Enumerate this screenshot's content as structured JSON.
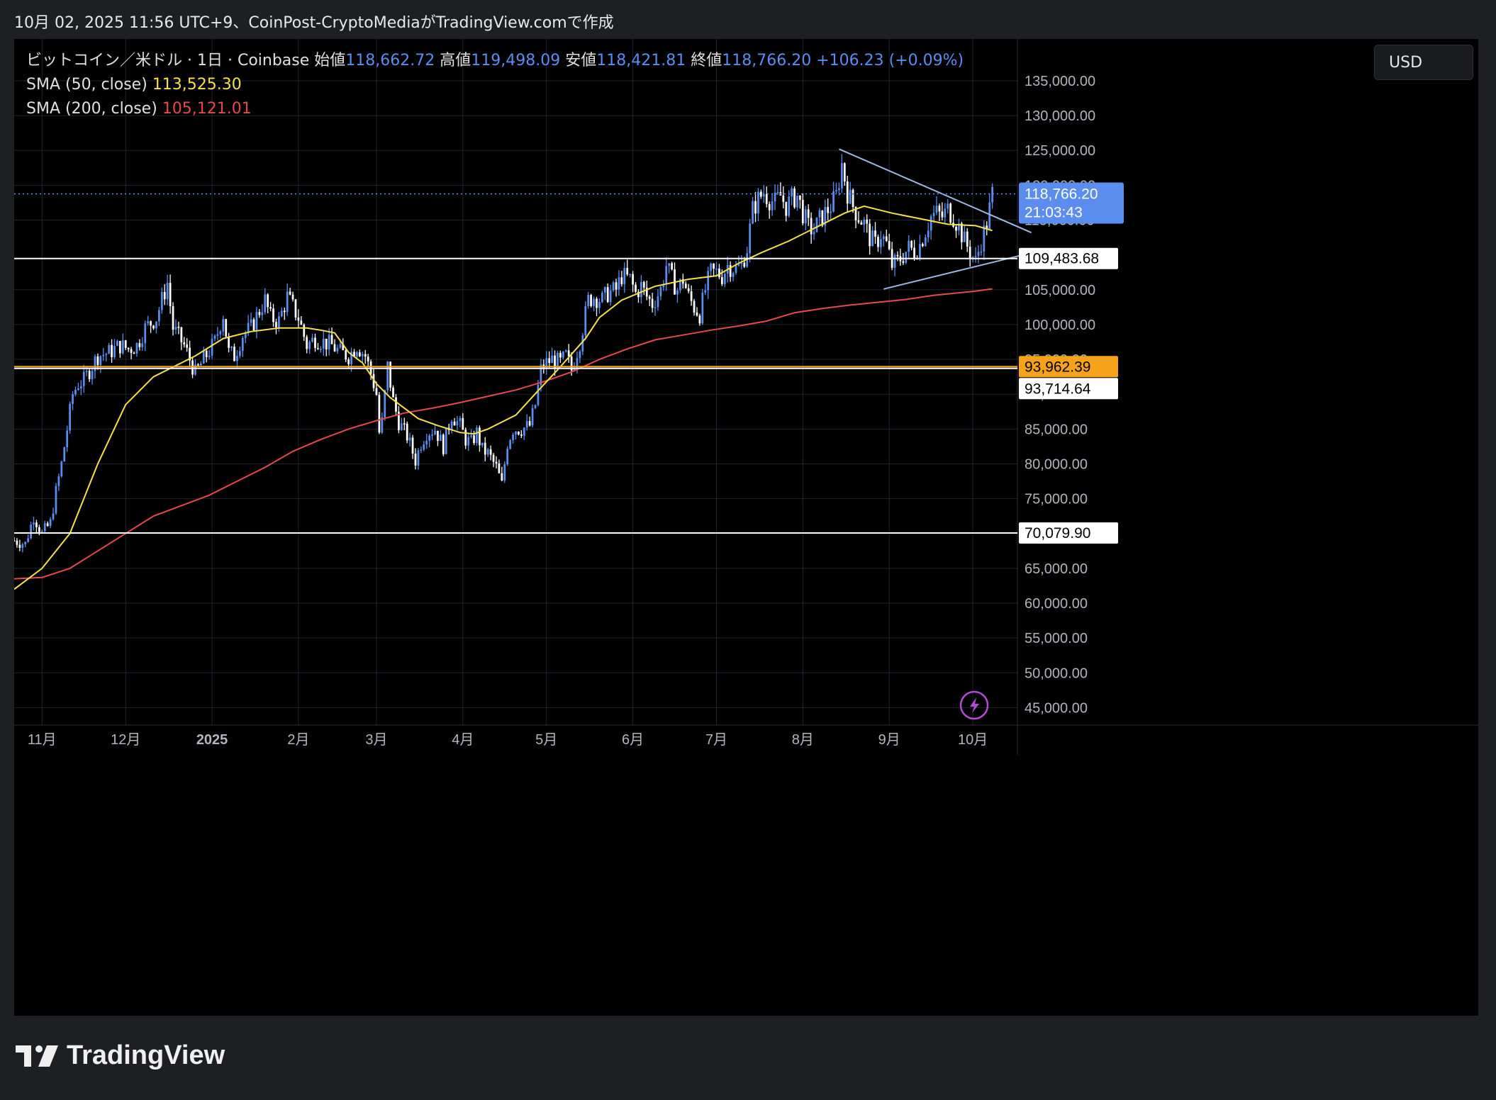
{
  "caption": "10月 02, 2025 11:56 UTC+9、CoinPost-CryptoMediaがTradingView.comで作成",
  "legend": {
    "symbol": "ビットコイン／米ドル · 1日 · Coinbase",
    "open_label": "始値",
    "open": "118,662.72",
    "high_label": "高値",
    "high": "119,498.09",
    "low_label": "安値",
    "low": "118,421.81",
    "close_label": "終値",
    "close": "118,766.20",
    "change": "+106.23 (+0.09%)",
    "sma50_label": "SMA (50, close)",
    "sma50_value": "113,525.30",
    "sma200_label": "SMA (200, close)",
    "sma200_value": "105,121.01"
  },
  "currency": "USD",
  "brand": "TradingView",
  "colors": {
    "background": "#000000",
    "up": "#5b8def",
    "down": "#ffffff",
    "sma50": "#f5e14a",
    "sma200": "#e5484d",
    "trendline": "#9db8e6",
    "level_orange": "#f7a21b",
    "grid": "#3a3f55"
  },
  "chart_data": {
    "type": "candlestick",
    "title": "ビットコイン／米ドル · 1日 · Coinbase",
    "ylim": [
      42500,
      141000
    ],
    "y_ticks": [
      "135,000.00",
      "130,000.00",
      "125,000.00",
      "120,000.00",
      "115,000.00",
      "105,000.00",
      "100,000.00",
      "95,000.00",
      "90,000.00",
      "85,000.00",
      "80,000.00",
      "75,000.00",
      "65,000.00",
      "60,000.00",
      "55,000.00",
      "50,000.00",
      "45,000.00"
    ],
    "y_tick_values": [
      135000,
      130000,
      125000,
      120000,
      115000,
      105000,
      100000,
      95000,
      90000,
      85000,
      80000,
      75000,
      65000,
      60000,
      55000,
      50000,
      45000
    ],
    "x_months": [
      {
        "label": "11月",
        "day": 0
      },
      {
        "label": "12月",
        "day": 30
      },
      {
        "label": "2025",
        "day": 61
      },
      {
        "label": "2月",
        "day": 92
      },
      {
        "label": "3月",
        "day": 120
      },
      {
        "label": "4月",
        "day": 151
      },
      {
        "label": "5月",
        "day": 181
      },
      {
        "label": "6月",
        "day": 212
      },
      {
        "label": "7月",
        "day": 242
      },
      {
        "label": "8月",
        "day": 273
      },
      {
        "label": "9月",
        "day": 304
      },
      {
        "label": "10月",
        "day": 334
      }
    ],
    "x_range_days": [
      -10,
      350
    ],
    "price_path": [
      [
        -10,
        69000
      ],
      [
        -6,
        68500
      ],
      [
        -3,
        72500
      ],
      [
        0,
        70000
      ],
      [
        3,
        71500
      ],
      [
        5,
        76000
      ],
      [
        7,
        80000
      ],
      [
        9,
        85000
      ],
      [
        11,
        90000
      ],
      [
        13,
        91500
      ],
      [
        15,
        92000
      ],
      [
        20,
        95500
      ],
      [
        24,
        96000
      ],
      [
        28,
        97000
      ],
      [
        31,
        96500
      ],
      [
        34,
        97000
      ],
      [
        37,
        99500
      ],
      [
        41,
        101000
      ],
      [
        45,
        106000
      ],
      [
        47,
        99500
      ],
      [
        51,
        97000
      ],
      [
        55,
        93000
      ],
      [
        58,
        95000
      ],
      [
        62,
        97500
      ],
      [
        65,
        101500
      ],
      [
        67,
        96000
      ],
      [
        69,
        95500
      ],
      [
        72,
        98500
      ],
      [
        75,
        99500
      ],
      [
        78,
        102000
      ],
      [
        80,
        103500
      ],
      [
        82,
        101000
      ],
      [
        85,
        100500
      ],
      [
        88,
        104000
      ],
      [
        90,
        102500
      ],
      [
        92,
        101000
      ],
      [
        95,
        97000
      ],
      [
        98,
        98000
      ],
      [
        101,
        97500
      ],
      [
        104,
        97000
      ],
      [
        107,
        96000
      ],
      [
        110,
        95500
      ],
      [
        113,
        97000
      ],
      [
        116,
        95500
      ],
      [
        118,
        93000
      ],
      [
        120,
        90000
      ],
      [
        121,
        84500
      ],
      [
        122,
        86000
      ],
      [
        124,
        94000
      ],
      [
        126,
        89000
      ],
      [
        128,
        86000
      ],
      [
        131,
        84000
      ],
      [
        134,
        80500
      ],
      [
        136,
        83000
      ],
      [
        138,
        84500
      ],
      [
        141,
        85000
      ],
      [
        144,
        82500
      ],
      [
        147,
        87000
      ],
      [
        150,
        85500
      ],
      [
        152,
        83500
      ],
      [
        154,
        83000
      ],
      [
        156,
        84500
      ],
      [
        158,
        82000
      ],
      [
        160,
        81500
      ],
      [
        163,
        79500
      ],
      [
        165,
        77000
      ],
      [
        167,
        83000
      ],
      [
        169,
        85000
      ],
      [
        172,
        85000
      ],
      [
        175,
        85500
      ],
      [
        177,
        88500
      ],
      [
        179,
        93500
      ],
      [
        181,
        94500
      ],
      [
        183,
        95000
      ],
      [
        186,
        94500
      ],
      [
        188,
        95500
      ],
      [
        190,
        93500
      ],
      [
        193,
        97500
      ],
      [
        196,
        103500
      ],
      [
        198,
        104000
      ],
      [
        201,
        103500
      ],
      [
        203,
        104500
      ],
      [
        206,
        105000
      ],
      [
        208,
        107000
      ],
      [
        211,
        106500
      ],
      [
        213,
        104500
      ],
      [
        215,
        105500
      ],
      [
        217,
        104000
      ],
      [
        219,
        103000
      ],
      [
        222,
        105000
      ],
      [
        224,
        108500
      ],
      [
        226,
        106500
      ],
      [
        228,
        105000
      ],
      [
        230,
        106500
      ],
      [
        232,
        104000
      ],
      [
        234,
        102500
      ],
      [
        236,
        101500
      ],
      [
        238,
        105000
      ],
      [
        240,
        107500
      ],
      [
        242,
        107500
      ],
      [
        244,
        107000
      ],
      [
        246,
        108500
      ],
      [
        249,
        108000
      ],
      [
        251,
        108500
      ],
      [
        253,
        111000
      ],
      [
        255,
        116500
      ],
      [
        257,
        118000
      ],
      [
        259,
        119000
      ],
      [
        261,
        118000
      ],
      [
        263,
        117500
      ],
      [
        265,
        118500
      ],
      [
        267,
        117000
      ],
      [
        269,
        118000
      ],
      [
        271,
        118500
      ],
      [
        273,
        116000
      ],
      [
        275,
        114000
      ],
      [
        277,
        113500
      ],
      [
        279,
        115000
      ],
      [
        281,
        116000
      ],
      [
        283,
        117000
      ],
      [
        285,
        118500
      ],
      [
        287,
        123000
      ],
      [
        289,
        119000
      ],
      [
        291,
        117000
      ],
      [
        293,
        115500
      ],
      [
        295,
        114500
      ],
      [
        297,
        112500
      ],
      [
        299,
        111500
      ],
      [
        301,
        113000
      ],
      [
        303,
        111500
      ],
      [
        305,
        108500
      ],
      [
        307,
        109000
      ],
      [
        309,
        110000
      ],
      [
        311,
        111000
      ],
      [
        313,
        110500
      ],
      [
        315,
        111500
      ],
      [
        317,
        113500
      ],
      [
        319,
        115500
      ],
      [
        321,
        116000
      ],
      [
        323,
        115500
      ],
      [
        325,
        116500
      ],
      [
        327,
        115500
      ],
      [
        329,
        114000
      ],
      [
        331,
        112000
      ],
      [
        333,
        110500
      ],
      [
        335,
        109000
      ],
      [
        337,
        112000
      ],
      [
        339,
        114500
      ],
      [
        341,
        118766
      ]
    ],
    "sma50_path": [
      [
        -10,
        62000
      ],
      [
        0,
        65000
      ],
      [
        10,
        70000
      ],
      [
        20,
        80000
      ],
      [
        30,
        88500
      ],
      [
        40,
        92500
      ],
      [
        50,
        94500
      ],
      [
        55,
        95500
      ],
      [
        65,
        98000
      ],
      [
        75,
        99000
      ],
      [
        85,
        99500
      ],
      [
        95,
        99500
      ],
      [
        100,
        99200
      ],
      [
        105,
        98800
      ],
      [
        110,
        96000
      ],
      [
        115,
        94500
      ],
      [
        120,
        91500
      ],
      [
        125,
        89500
      ],
      [
        135,
        86500
      ],
      [
        142,
        85500
      ],
      [
        150,
        84500
      ],
      [
        155,
        84300
      ],
      [
        160,
        85000
      ],
      [
        165,
        86000
      ],
      [
        170,
        87000
      ],
      [
        178,
        90500
      ],
      [
        185,
        93500
      ],
      [
        195,
        98000
      ],
      [
        200,
        101000
      ],
      [
        208,
        103500
      ],
      [
        220,
        105500
      ],
      [
        232,
        106500
      ],
      [
        242,
        107000
      ],
      [
        250,
        108800
      ],
      [
        258,
        110300
      ],
      [
        268,
        112000
      ],
      [
        278,
        114000
      ],
      [
        288,
        116000
      ],
      [
        295,
        117000
      ],
      [
        305,
        116000
      ],
      [
        315,
        115200
      ],
      [
        325,
        114400
      ],
      [
        335,
        114200
      ],
      [
        341,
        113500
      ]
    ],
    "sma200_path": [
      [
        -10,
        63500
      ],
      [
        0,
        63700
      ],
      [
        10,
        65000
      ],
      [
        20,
        67500
      ],
      [
        30,
        70000
      ],
      [
        40,
        72500
      ],
      [
        50,
        74000
      ],
      [
        60,
        75500
      ],
      [
        70,
        77500
      ],
      [
        80,
        79500
      ],
      [
        90,
        81800
      ],
      [
        100,
        83500
      ],
      [
        110,
        85000
      ],
      [
        120,
        86200
      ],
      [
        130,
        87300
      ],
      [
        140,
        88000
      ],
      [
        150,
        88800
      ],
      [
        160,
        89700
      ],
      [
        170,
        90600
      ],
      [
        180,
        91800
      ],
      [
        190,
        93200
      ],
      [
        200,
        95000
      ],
      [
        210,
        96500
      ],
      [
        220,
        97800
      ],
      [
        230,
        98500
      ],
      [
        240,
        99200
      ],
      [
        250,
        99800
      ],
      [
        260,
        100500
      ],
      [
        270,
        101700
      ],
      [
        280,
        102300
      ],
      [
        290,
        102800
      ],
      [
        300,
        103200
      ],
      [
        310,
        103600
      ],
      [
        320,
        104200
      ],
      [
        330,
        104600
      ],
      [
        335,
        104800
      ],
      [
        341,
        105121
      ]
    ],
    "horizontal_levels": [
      {
        "value": 109483.68,
        "label": "109,483.68",
        "color": "#ffffff"
      },
      {
        "value": 93962.39,
        "label": "93,962.39",
        "color": "#f7a21b"
      },
      {
        "value": 93714.64,
        "label": "93,714.64",
        "color": "#ffffff"
      },
      {
        "value": 70079.9,
        "label": "70,079.90",
        "color": "#ffffff"
      }
    ],
    "trendlines": [
      {
        "from": [
          286,
          125200
        ],
        "to": [
          355,
          113200
        ]
      },
      {
        "from": [
          302,
          105100
        ],
        "to": [
          355,
          110300
        ]
      }
    ],
    "last_price": {
      "value": 118766.2,
      "label": "118,766.20",
      "countdown": "21:03:43"
    }
  }
}
